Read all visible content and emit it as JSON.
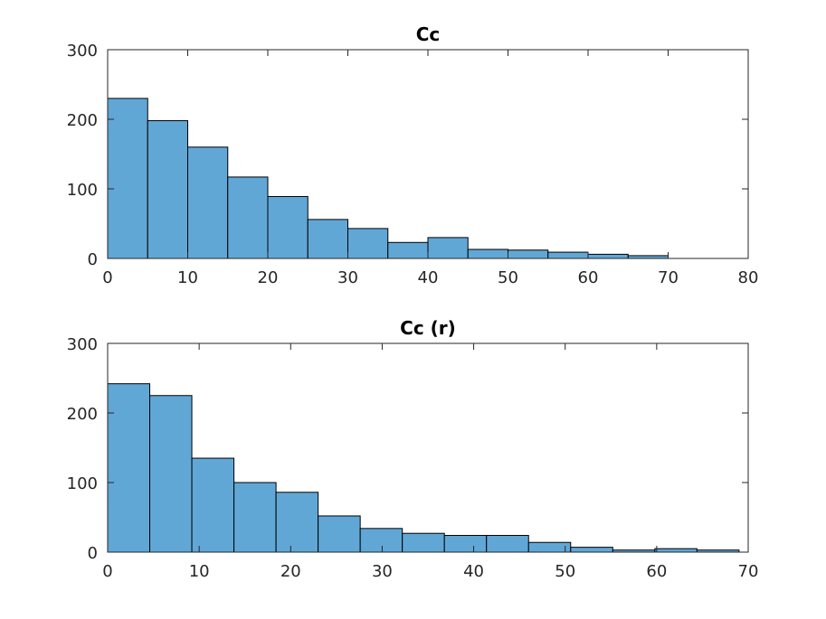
{
  "chart_data": [
    {
      "type": "bar",
      "title": "Cc",
      "xlabel": "",
      "ylabel": "",
      "xlim": [
        0,
        80
      ],
      "ylim": [
        0,
        300
      ],
      "xticks": [
        0,
        10,
        20,
        30,
        40,
        50,
        60,
        70,
        80
      ],
      "yticks": [
        0,
        100,
        200,
        300
      ],
      "bin_edges": [
        0,
        5,
        10,
        15,
        20,
        25,
        30,
        35,
        40,
        45,
        50,
        55,
        60,
        65,
        70
      ],
      "values": [
        230,
        198,
        160,
        117,
        89,
        56,
        43,
        23,
        30,
        13,
        12,
        9,
        6,
        4
      ],
      "bar_color": "#61a7d6",
      "edge_color": "#000000",
      "grid": false
    },
    {
      "type": "bar",
      "title": "Cc (r)",
      "xlabel": "",
      "ylabel": "",
      "xlim": [
        0,
        70
      ],
      "ylim": [
        0,
        300
      ],
      "xticks": [
        0,
        10,
        20,
        30,
        40,
        50,
        60,
        70
      ],
      "yticks": [
        0,
        100,
        200,
        300
      ],
      "bin_edges": [
        0,
        4.6,
        9.2,
        13.8,
        18.4,
        23.0,
        27.6,
        32.2,
        36.8,
        41.4,
        46.0,
        50.6,
        55.2,
        59.8,
        64.4,
        69.0
      ],
      "values": [
        242,
        225,
        135,
        100,
        86,
        52,
        34,
        27,
        24,
        24,
        14,
        7,
        3,
        5,
        3
      ],
      "bar_color": "#61a7d6",
      "edge_color": "#000000",
      "grid": false
    }
  ]
}
